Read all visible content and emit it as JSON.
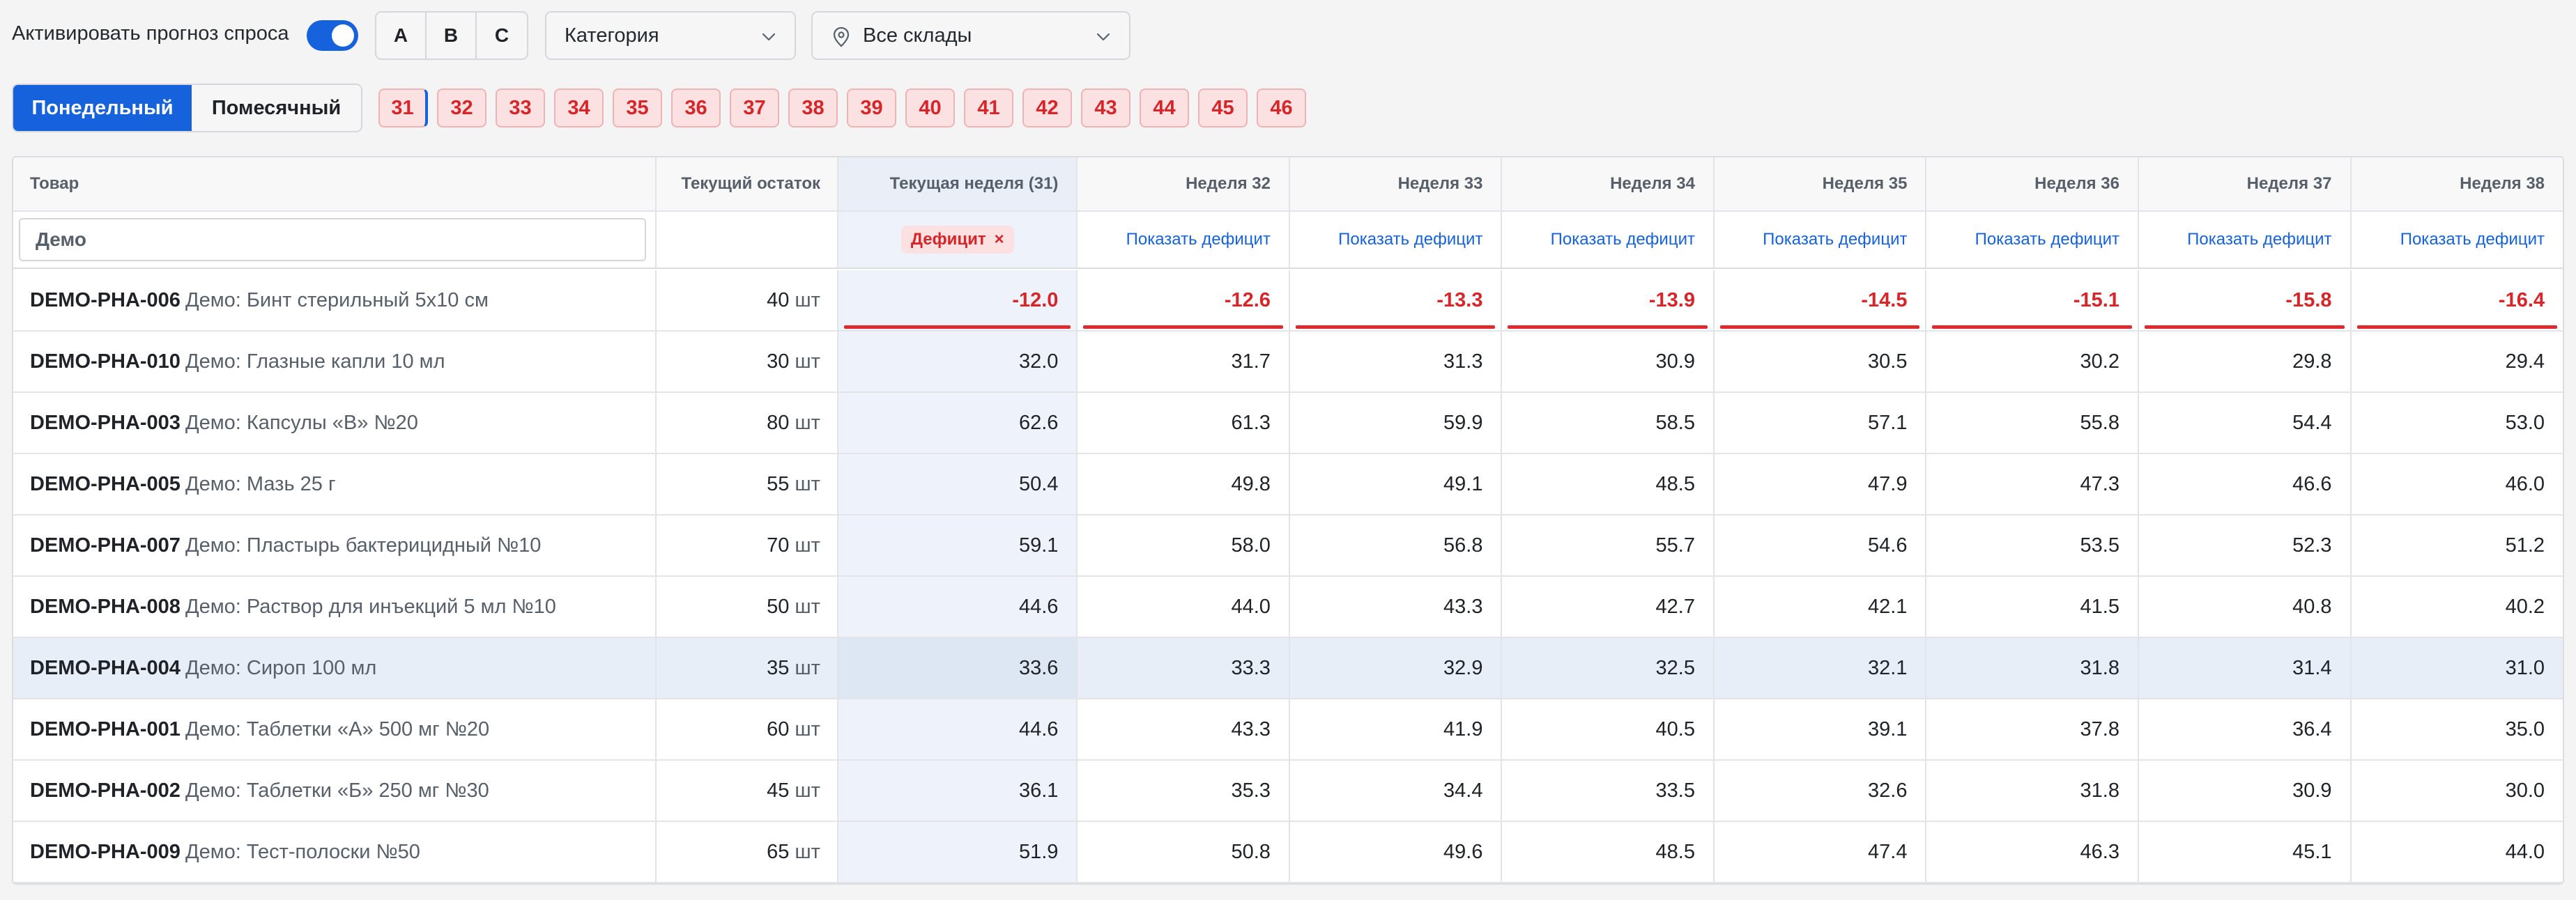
{
  "toolbar": {
    "activate_label": "Активировать прогноз спроса",
    "toggle_on": true,
    "abc": [
      "A",
      "B",
      "C"
    ],
    "category_label": "Категория",
    "warehouse_label": "Все склады"
  },
  "period": {
    "weekly_label": "Понедельный",
    "monthly_label": "Помесячный",
    "active": "weekly"
  },
  "weeks": [
    "31",
    "32",
    "33",
    "34",
    "35",
    "36",
    "37",
    "38",
    "39",
    "40",
    "41",
    "42",
    "43",
    "44",
    "45",
    "46"
  ],
  "table": {
    "headers": {
      "product": "Товар",
      "stock": "Текущий остаток",
      "current_week": "Текущая неделя (31)",
      "weeks": [
        "Неделя 32",
        "Неделя 33",
        "Неделя 34",
        "Неделя 35",
        "Неделя 36",
        "Неделя 37",
        "Неделя 38"
      ]
    },
    "filter": {
      "search_value": "Демо",
      "deficit_chip": "Дефицит",
      "deficit_chip_close": "×",
      "show_deficit": "Показать дефицит"
    },
    "unit": "шт",
    "rows": [
      {
        "sku": "DEMO-PHA-006",
        "name": "Демо: Бинт стерильный 5х10 см",
        "stock": "40",
        "current": "-12.0",
        "weeks": [
          "-12.6",
          "-13.3",
          "-13.9",
          "-14.5",
          "-15.1",
          "-15.8",
          "-16.4"
        ],
        "deficit": true
      },
      {
        "sku": "DEMO-PHA-010",
        "name": "Демо: Глазные капли 10 мл",
        "stock": "30",
        "current": "32.0",
        "weeks": [
          "31.7",
          "31.3",
          "30.9",
          "30.5",
          "30.2",
          "29.8",
          "29.4"
        ]
      },
      {
        "sku": "DEMO-PHA-003",
        "name": "Демо: Капсулы «B» №20",
        "stock": "80",
        "current": "62.6",
        "weeks": [
          "61.3",
          "59.9",
          "58.5",
          "57.1",
          "55.8",
          "54.4",
          "53.0"
        ]
      },
      {
        "sku": "DEMO-PHA-005",
        "name": "Демо: Мазь 25 г",
        "stock": "55",
        "current": "50.4",
        "weeks": [
          "49.8",
          "49.1",
          "48.5",
          "47.9",
          "47.3",
          "46.6",
          "46.0"
        ]
      },
      {
        "sku": "DEMO-PHA-007",
        "name": "Демо: Пластырь бактерицидный №10",
        "stock": "70",
        "current": "59.1",
        "weeks": [
          "58.0",
          "56.8",
          "55.7",
          "54.6",
          "53.5",
          "52.3",
          "51.2"
        ]
      },
      {
        "sku": "DEMO-PHA-008",
        "name": "Демо: Раствор для инъекций 5 мл №10",
        "stock": "50",
        "current": "44.6",
        "weeks": [
          "44.0",
          "43.3",
          "42.7",
          "42.1",
          "41.5",
          "40.8",
          "40.2"
        ]
      },
      {
        "sku": "DEMO-PHA-004",
        "name": "Демо: Сироп 100 мл",
        "stock": "35",
        "current": "33.6",
        "weeks": [
          "33.3",
          "32.9",
          "32.5",
          "32.1",
          "31.8",
          "31.4",
          "31.0"
        ],
        "highlight": true
      },
      {
        "sku": "DEMO-PHA-001",
        "name": "Демо: Таблетки «A» 500 мг №20",
        "stock": "60",
        "current": "44.6",
        "weeks": [
          "43.3",
          "41.9",
          "40.5",
          "39.1",
          "37.8",
          "36.4",
          "35.0"
        ]
      },
      {
        "sku": "DEMO-PHA-002",
        "name": "Демо: Таблетки «Б» 250 мг №30",
        "stock": "45",
        "current": "36.1",
        "weeks": [
          "35.3",
          "34.4",
          "33.5",
          "32.6",
          "31.8",
          "30.9",
          "30.0"
        ]
      },
      {
        "sku": "DEMO-PHA-009",
        "name": "Демо: Тест-полоски №50",
        "stock": "65",
        "current": "51.9",
        "weeks": [
          "50.8",
          "49.6",
          "48.5",
          "47.4",
          "46.3",
          "45.1",
          "44.0"
        ]
      }
    ]
  },
  "colors": {
    "accent": "#1662dd",
    "deficit_red": "#d6262a",
    "current_week_bg": "#eef3fb"
  }
}
